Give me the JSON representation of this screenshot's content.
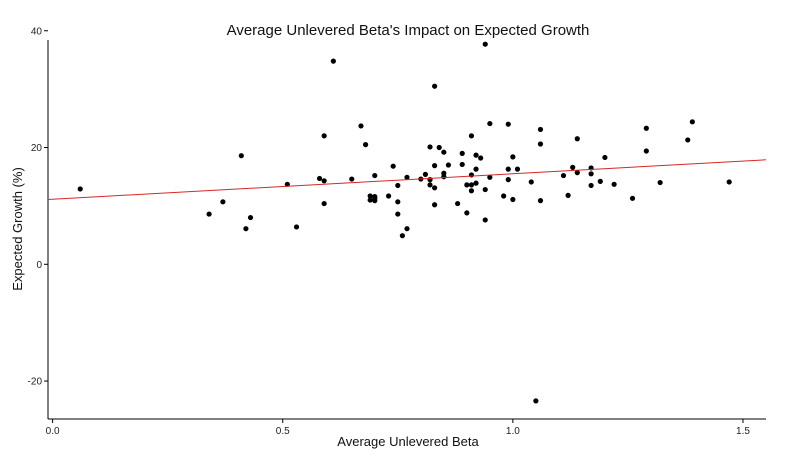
{
  "chart_data": {
    "type": "scatter",
    "title": "Average Unlevered Beta's Impact on Expected Growth",
    "xlabel": "Average Unlevered Beta",
    "ylabel": "Expected Growth (%)",
    "xlim": [
      -0.01,
      1.55
    ],
    "ylim": [
      -26.5,
      41.5
    ],
    "xticks": [
      0.0,
      0.5,
      1.0,
      1.5
    ],
    "xtick_labels": [
      "0.0",
      "0.5",
      "1.0",
      "1.5"
    ],
    "yticks": [
      -20,
      0,
      20,
      40
    ],
    "ytick_labels": [
      "-20",
      "0",
      "20",
      "40"
    ],
    "grid": false,
    "legend": "none",
    "colors": {
      "points": "#000000",
      "trend_line": "#d62728"
    },
    "trend_line": {
      "x": [
        -0.01,
        1.55
      ],
      "y": [
        11.1,
        17.9
      ]
    },
    "x": [
      0.06,
      0.34,
      0.37,
      0.41,
      0.42,
      0.43,
      0.51,
      0.53,
      0.58,
      0.59,
      0.59,
      0.59,
      0.61,
      0.65,
      0.67,
      0.68,
      0.69,
      0.69,
      0.7,
      0.7,
      0.7,
      0.7,
      0.73,
      0.74,
      0.75,
      0.75,
      0.75,
      0.76,
      0.77,
      0.77,
      0.8,
      0.81,
      0.82,
      0.82,
      0.82,
      0.83,
      0.83,
      0.83,
      0.83,
      0.84,
      0.85,
      0.85,
      0.85,
      0.86,
      0.88,
      0.89,
      0.89,
      0.9,
      0.9,
      0.91,
      0.91,
      0.91,
      0.91,
      0.92,
      0.92,
      0.92,
      0.93,
      0.94,
      0.94,
      0.94,
      0.95,
      0.95,
      0.98,
      0.99,
      0.99,
      0.99,
      1.0,
      1.0,
      1.01,
      1.04,
      1.05,
      1.06,
      1.06,
      1.06,
      1.11,
      1.12,
      1.13,
      1.14,
      1.14,
      1.17,
      1.17,
      1.17,
      1.19,
      1.2,
      1.22,
      1.26,
      1.29,
      1.29,
      1.32,
      1.38,
      1.39,
      1.47
    ],
    "y": [
      12.9,
      8.6,
      10.7,
      18.6,
      6.1,
      8.0,
      13.7,
      6.4,
      14.7,
      14.3,
      10.4,
      22.0,
      34.8,
      14.6,
      23.7,
      20.5,
      11.7,
      11.0,
      15.2,
      11.6,
      11.3,
      10.9,
      11.7,
      16.8,
      13.5,
      8.6,
      10.7,
      4.9,
      6.1,
      14.9,
      14.6,
      15.4,
      20.1,
      14.5,
      13.6,
      30.5,
      16.9,
      13.1,
      10.2,
      20.0,
      19.2,
      15.6,
      15.0,
      17.0,
      10.4,
      19.0,
      17.1,
      13.6,
      8.8,
      22.0,
      15.3,
      13.6,
      12.6,
      16.3,
      18.7,
      13.9,
      18.2,
      37.7,
      12.8,
      7.6,
      24.1,
      14.9,
      11.7,
      24.0,
      16.3,
      14.5,
      11.1,
      18.4,
      16.3,
      14.1,
      -23.4,
      23.1,
      20.6,
      10.9,
      15.2,
      11.8,
      16.6,
      21.5,
      15.7,
      16.5,
      15.5,
      13.5,
      14.2,
      18.3,
      13.7,
      11.3,
      23.3,
      19.4,
      14.0,
      21.3,
      24.4,
      14.1
    ]
  }
}
